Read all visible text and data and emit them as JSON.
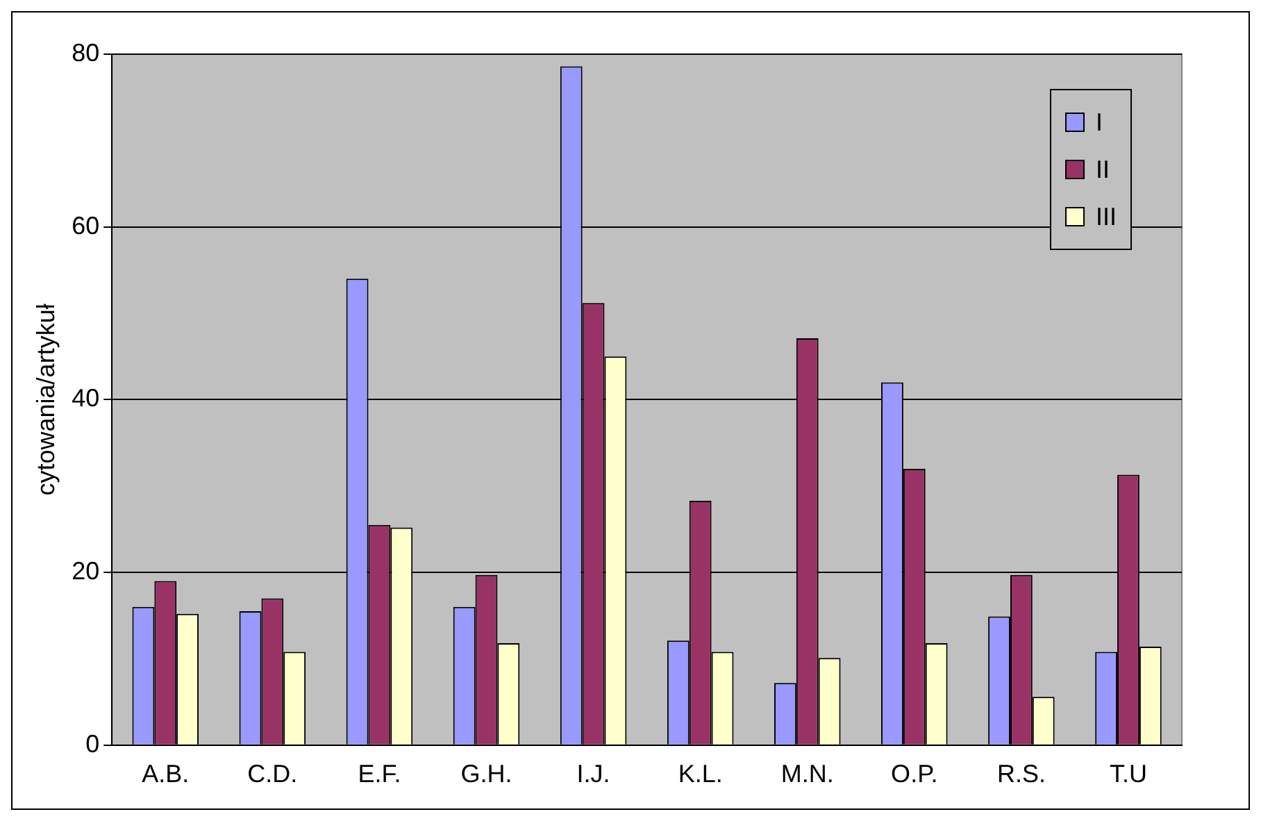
{
  "chart_data": {
    "type": "bar",
    "ylabel": "cytowania/artykuł",
    "categories": [
      "A.B.",
      "C.D.",
      "E.F.",
      "G.H.",
      "I.J.",
      "K.L.",
      "M.N.",
      "O.P.",
      "R.S.",
      "T.U"
    ],
    "series": [
      {
        "name": "I",
        "color": "#9999ff",
        "values": [
          16,
          15.5,
          54,
          16,
          78.6,
          12.1,
          7.2,
          42,
          14.9,
          10.8
        ]
      },
      {
        "name": "II",
        "color": "#993366",
        "values": [
          19,
          17,
          25.5,
          19.7,
          51.2,
          28.3,
          47.1,
          32,
          19.7,
          31.3
        ]
      },
      {
        "name": "III",
        "color": "#ffffcc",
        "values": [
          15.2,
          10.8,
          25.2,
          11.8,
          45,
          10.8,
          10.1,
          11.8,
          5.6,
          11.4
        ]
      }
    ],
    "ylim": [
      0,
      80
    ],
    "yticks": [
      0,
      20,
      40,
      60,
      80
    ],
    "grid": "y",
    "legend": "top right"
  }
}
